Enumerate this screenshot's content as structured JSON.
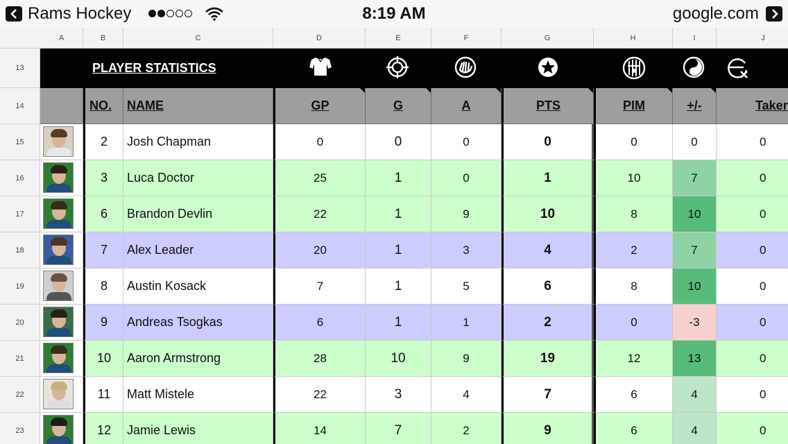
{
  "status": {
    "app_title": "Rams Hockey",
    "time": "8:19 AM",
    "domain": "google.com"
  },
  "colors": {
    "green": "#ccffcc",
    "blue": "#ccccff",
    "white": "#ffffff",
    "plus_strong": "#57bb7a",
    "plus_mid": "#8fd3a5",
    "plus_light": "#bde5c8",
    "plus_neg": "#f9d0d0"
  },
  "columns": [
    "A",
    "B",
    "C",
    "D",
    "E",
    "F",
    "G",
    "H",
    "I",
    "J"
  ],
  "sheet": {
    "title": "PLAYER STATISTICS",
    "icons": [
      "jersey-icon",
      "target-icon",
      "assist-hands-icon",
      "star-icon",
      "penalty-box-icon",
      "yin-yang-icon",
      "shot-blocked-icon"
    ],
    "headers": {
      "no": "NO.",
      "name": "NAME",
      "gp": "GP",
      "g": "G",
      "a": "A",
      "pts": "PTS",
      "pim": "PIM",
      "plusminus": "+/-",
      "taken": "Taken"
    },
    "rows": [
      {
        "row": "15",
        "no": "2",
        "name": "Josh Chapman",
        "gp": "0",
        "g": "0",
        "a": "0",
        "pts": "0",
        "pim": "0",
        "pm": "0",
        "taken": "0",
        "bg": "white",
        "pm_bg": "#ffffff"
      },
      {
        "row": "16",
        "no": "3",
        "name": "Luca Doctor",
        "gp": "25",
        "g": "1",
        "a": "0",
        "pts": "1",
        "pim": "10",
        "pm": "7",
        "taken": "0",
        "bg": "green",
        "pm_bg": "#8fd3a5"
      },
      {
        "row": "17",
        "no": "6",
        "name": "Brandon Devlin",
        "gp": "22",
        "g": "1",
        "a": "9",
        "pts": "10",
        "pim": "8",
        "pm": "10",
        "taken": "0",
        "bg": "green",
        "pm_bg": "#57bb7a"
      },
      {
        "row": "18",
        "no": "7",
        "name": "Alex Leader",
        "gp": "20",
        "g": "1",
        "a": "3",
        "pts": "4",
        "pim": "2",
        "pm": "7",
        "taken": "0",
        "bg": "blue",
        "pm_bg": "#8fd3a5"
      },
      {
        "row": "19",
        "no": "8",
        "name": "Austin Kosack",
        "gp": "7",
        "g": "1",
        "a": "5",
        "pts": "6",
        "pim": "8",
        "pm": "10",
        "taken": "0",
        "bg": "white",
        "pm_bg": "#57bb7a"
      },
      {
        "row": "20",
        "no": "9",
        "name": "Andreas Tsogkas",
        "gp": "6",
        "g": "1",
        "a": "1",
        "pts": "2",
        "pim": "0",
        "pm": "-3",
        "taken": "0",
        "bg": "blue",
        "pm_bg": "#f9d0d0"
      },
      {
        "row": "21",
        "no": "10",
        "name": "Aaron Armstrong",
        "gp": "28",
        "g": "10",
        "a": "9",
        "pts": "19",
        "pim": "12",
        "pm": "13",
        "taken": "0",
        "bg": "green",
        "pm_bg": "#57bb7a"
      },
      {
        "row": "22",
        "no": "11",
        "name": "Matt Mistele",
        "gp": "22",
        "g": "3",
        "a": "4",
        "pts": "7",
        "pim": "6",
        "pm": "4",
        "taken": "0",
        "bg": "white",
        "pm_bg": "#bde5c8"
      },
      {
        "row": "23",
        "no": "12",
        "name": "Jamie Lewis",
        "gp": "14",
        "g": "7",
        "a": "2",
        "pts": "9",
        "pim": "6",
        "pm": "4",
        "taken": "0",
        "bg": "green",
        "pm_bg": "#bde5c8"
      }
    ]
  }
}
